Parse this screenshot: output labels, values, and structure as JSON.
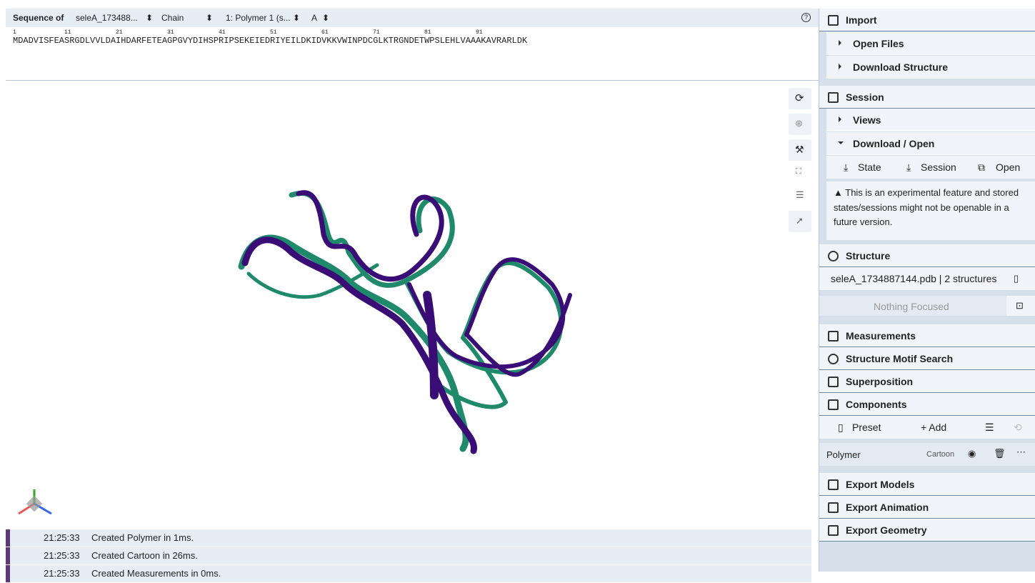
{
  "sequence_panel": {
    "label": "Sequence of",
    "structure": "seleA_173488...",
    "mode": "Chain",
    "entity": "1: Polymer 1 (s...",
    "chain": "A",
    "numbers": [
      1,
      11,
      21,
      31,
      41,
      51,
      61,
      71,
      81,
      91
    ],
    "sequence": "MDADVISFEASRGDLVVLDAIHDARFETEAGPGVYDIHSPRIPSEKEIEDRIYEILDKIDVKKVWINPDCGLKTRGNDETWPSLEHLVAAAKAVRARLDK"
  },
  "log": [
    {
      "time": "21:25:33",
      "message": "Created Polymer in 1ms."
    },
    {
      "time": "21:25:33",
      "message": "Created Cartoon in 26ms."
    },
    {
      "time": "21:25:33",
      "message": "Created Measurements in 0ms."
    }
  ],
  "sidebar": {
    "import": {
      "title": "Import",
      "items": [
        "Open Files",
        "Download Structure"
      ]
    },
    "session": {
      "title": "Session",
      "views": "Views",
      "download_open": "Download / Open",
      "buttons": [
        "State",
        "Session",
        "Open"
      ],
      "warning": "This is an experimental feature and stored states/sessions might not be openable in a future version."
    },
    "structure": {
      "title": "Structure",
      "file": "seleA_1734887144.pdb | 2 structures",
      "focus": "Nothing Focused"
    },
    "tools": [
      "Measurements",
      "Structure Motif Search",
      "Superposition"
    ],
    "components": {
      "title": "Components",
      "preset": "Preset",
      "add": "+ Add",
      "polymer": "Polymer",
      "representation": "Cartoon"
    },
    "exports": [
      "Export Models",
      "Export Animation",
      "Export Geometry"
    ]
  }
}
